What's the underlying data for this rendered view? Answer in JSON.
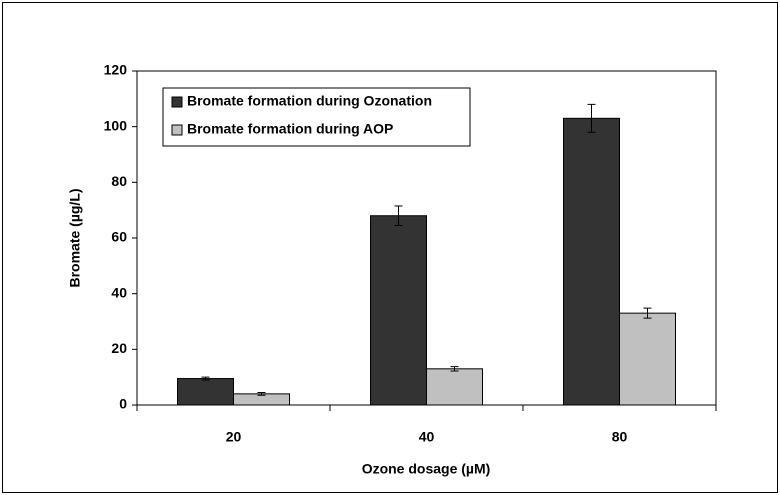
{
  "chart_data": {
    "type": "bar",
    "categories": [
      "20",
      "40",
      "80"
    ],
    "series": [
      {
        "name": "Bromate formation during Ozonation",
        "color": "#333333",
        "values": [
          9.5,
          68,
          103
        ],
        "errors": [
          0.5,
          3.5,
          5
        ]
      },
      {
        "name": "Bromate formation during AOP",
        "color": "#c0c0c0",
        "values": [
          4,
          13,
          33
        ],
        "errors": [
          0.5,
          0.8,
          1.8
        ]
      }
    ],
    "x_label": "Ozone dosage (µM)",
    "y_label": "Bromate (µg/L)",
    "ylim": [
      0,
      120
    ],
    "yticks": [
      0,
      20,
      40,
      60,
      80,
      100,
      120
    ],
    "legend": "top-left"
  }
}
